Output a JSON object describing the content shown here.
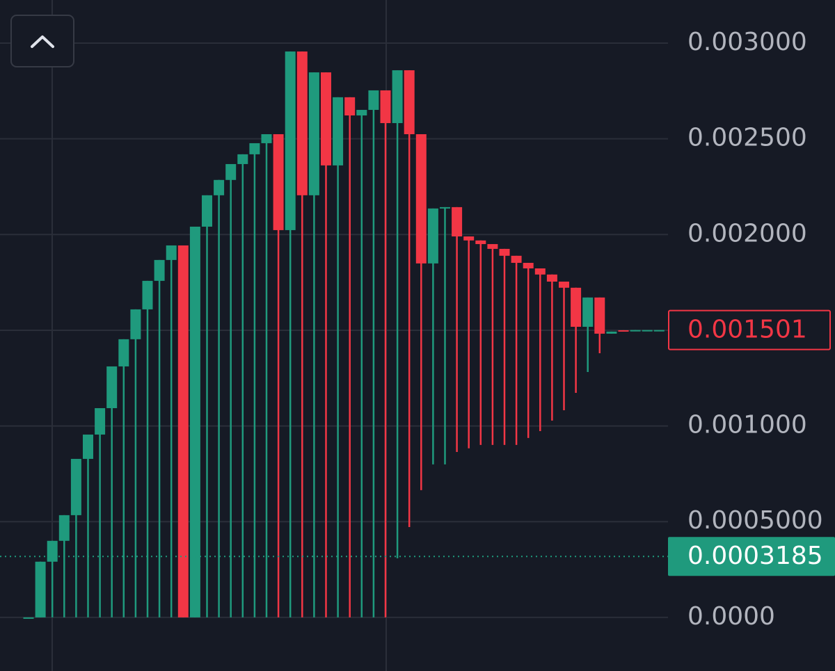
{
  "chart_data": {
    "type": "candlestick",
    "up_color": "#1f9a7d",
    "down_color": "#f23645",
    "grid": true,
    "ylim": [
      -0.00028,
      0.003225
    ],
    "yticks": [
      {
        "value": 0,
        "label": "0.0000"
      },
      {
        "value": 0.0005,
        "label": "0.0005000"
      },
      {
        "value": 0.001,
        "label": "0.001000"
      },
      {
        "value": 0.002,
        "label": "0.002000"
      },
      {
        "value": 0.0025,
        "label": "0.002500"
      },
      {
        "value": 0.003,
        "label": "0.003000"
      }
    ],
    "open": [
      0,
      0,
      0.000291,
      0.0004,
      0.000534,
      0.000828,
      0.000955,
      0.001093,
      0.001311,
      0.001453,
      0.001609,
      0.001758,
      0.001867,
      0.001943,
      0,
      0.002041,
      0.002205,
      0.002285,
      0.002368,
      0.002419,
      0.002477,
      0.002524,
      0.002023,
      0.002956,
      0.002205,
      0.002847,
      0.002361,
      0.002717,
      0.002622,
      0.002651,
      0.002753,
      0.002582,
      0.002858,
      0.002524,
      0.001849,
      0.002136,
      0.002143,
      0.00199,
      0.001969,
      0.00195,
      0.001925,
      0.001889,
      0.001852,
      0.001823,
      0.001791,
      0.001754,
      0.001722,
      0.001518,
      0.001671,
      0.001482,
      0.0015,
      0.001496,
      0.001501,
      0.001501
    ],
    "high": [
      0,
      0.000291,
      0.0004,
      0.000534,
      0.000828,
      0.000955,
      0.001093,
      0.001311,
      0.001453,
      0.001609,
      0.001758,
      0.001867,
      0.001943,
      0.001943,
      0.002041,
      0.002205,
      0.002285,
      0.002368,
      0.002419,
      0.002477,
      0.002524,
      0.002524,
      0.002956,
      0.002956,
      0.002847,
      0.002847,
      0.002717,
      0.002717,
      0.002651,
      0.002753,
      0.002753,
      0.002858,
      0.002858,
      0.002524,
      0.002136,
      0.002143,
      0.002143,
      0.00199,
      0.001969,
      0.00195,
      0.001925,
      0.001889,
      0.001852,
      0.001823,
      0.001791,
      0.001754,
      0.001722,
      0.001671,
      0.001671,
      0.001493,
      0.0015,
      0.001501,
      0.001501,
      0.001501
    ],
    "low": [
      0,
      0,
      0,
      0,
      0,
      0,
      0,
      0,
      0,
      0,
      0,
      0,
      0,
      0,
      0,
      0,
      0,
      0,
      0,
      0,
      0,
      0,
      0,
      0,
      0,
      0,
      0,
      0,
      0,
      0,
      0,
      0.000309,
      0.000472,
      0.000665,
      0.000799,
      0.000799,
      0.000864,
      0.000883,
      0.000901,
      0.000901,
      0.000901,
      0.000901,
      0.000937,
      0.000973,
      0.001028,
      0.001082,
      0.001173,
      0.001282,
      0.00138,
      0.001482,
      0.001496,
      0.001496,
      0.001501,
      0.001501
    ],
    "close": [
      0,
      0.000291,
      0.0004,
      0.000534,
      0.000828,
      0.000955,
      0.001093,
      0.001311,
      0.001453,
      0.001609,
      0.001758,
      0.001867,
      0.001943,
      0,
      0.002041,
      0.002205,
      0.002285,
      0.002368,
      0.002419,
      0.002477,
      0.002524,
      0.002023,
      0.002956,
      0.002205,
      0.002847,
      0.002361,
      0.002717,
      0.002622,
      0.002651,
      0.002753,
      0.002582,
      0.002858,
      0.002524,
      0.001849,
      0.002136,
      0.002143,
      0.00199,
      0.001969,
      0.00195,
      0.001925,
      0.001889,
      0.001852,
      0.001823,
      0.001791,
      0.001754,
      0.001722,
      0.001518,
      0.001671,
      0.001482,
      0.001493,
      0.001496,
      0.001501,
      0.001501,
      0.001501
    ],
    "price_labels": [
      {
        "value": 0.001501,
        "label": "0.001501",
        "color": "#f23645",
        "filled": false,
        "line": false
      },
      {
        "value": 0.0003185,
        "label": "0.0003185",
        "color": "#1f9a7d",
        "filled": true,
        "line": true
      }
    ]
  }
}
